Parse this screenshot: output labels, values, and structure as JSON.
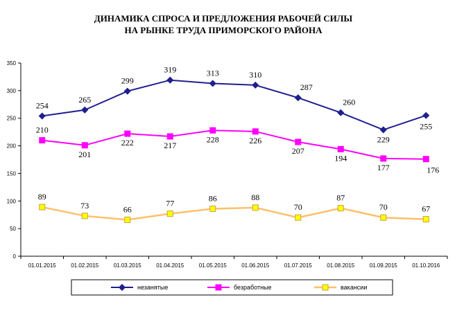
{
  "chart_data": {
    "type": "line",
    "title": "ДИНАМИКА СПРОСА И ПРЕДЛОЖЕНИЯ РАБОЧЕЙ СИЛЫ",
    "subtitle": "НА РЫНКЕ ТРУДА ПРИМОРСКОГО РАЙОНА",
    "categories": [
      "01.01.2015",
      "01.02.2015",
      "01.03.2015",
      "01.04.2015",
      "01.05.2015",
      "01.06.2015",
      "01.07.2015",
      "01.08.2015",
      "01.09.2015",
      "01.10.2016"
    ],
    "ylim": [
      0,
      350
    ],
    "yticks": [
      "0",
      "50",
      "100",
      "150",
      "200",
      "250",
      "300",
      "350"
    ],
    "grid": false,
    "legend_position": "bottom",
    "series": [
      {
        "name": "незанятые",
        "color": "#1f1f8f",
        "marker": "diamond",
        "values": [
          254,
          265,
          299,
          319,
          313,
          310,
          287,
          260,
          229,
          255
        ],
        "labels": [
          "254",
          "265",
          "299",
          "319",
          "313",
          "310",
          "287",
          "260",
          "229",
          "255"
        ]
      },
      {
        "name": "безработные",
        "color": "#ff00ff",
        "marker": "square",
        "values": [
          210,
          201,
          222,
          217,
          228,
          226,
          207,
          194,
          177,
          176
        ],
        "labels": [
          "210",
          "201",
          "222",
          "217",
          "228",
          "226",
          "207",
          "194",
          "177",
          "176"
        ]
      },
      {
        "name": "вакансии",
        "color": "#ffc068",
        "marker": "square-yellow",
        "values": [
          89,
          73,
          66,
          77,
          86,
          88,
          70,
          87,
          70,
          67
        ],
        "labels": [
          "89",
          "73",
          "66",
          "77",
          "86",
          "88",
          "70",
          "87",
          "70",
          "67"
        ]
      }
    ]
  }
}
